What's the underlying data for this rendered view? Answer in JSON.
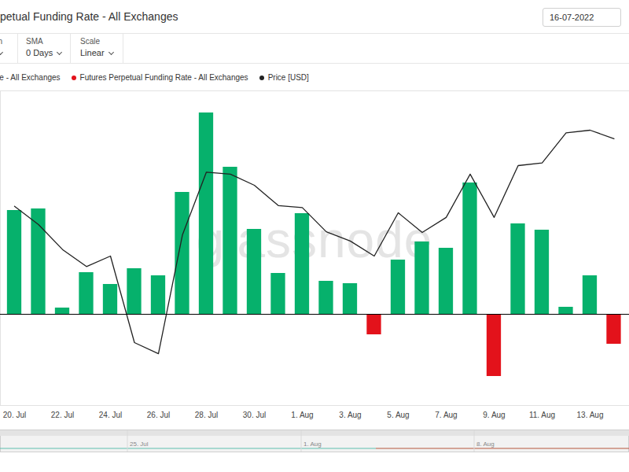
{
  "header": {
    "title": "petual Funding Rate - All Exchanges",
    "date": "16-07-2022",
    "controls": [
      {
        "label": "on"
      },
      {
        "label": "SMA",
        "value": "0 Days"
      },
      {
        "label": "Scale",
        "value": "Linear"
      }
    ]
  },
  "chart_data": {
    "type": "bar",
    "watermark": "glassnode",
    "categories": [
      "20. Jul",
      null,
      "22. Jul",
      null,
      "24. Jul",
      null,
      "26. Jul",
      null,
      "28. Jul",
      null,
      "30. Jul",
      null,
      "1. Aug",
      null,
      "3. Aug",
      null,
      "5. Aug",
      null,
      "7. Aug",
      null,
      "9. Aug",
      null,
      "11. Aug",
      null,
      "13. Aug",
      null
    ],
    "series": [
      {
        "name": "ate - All Exchanges",
        "type": "bar",
        "color": "#06b16c",
        "values": [
          0.0132,
          0.0134,
          0.0008,
          0.0053,
          0.0038,
          0.0058,
          0.0049,
          0.0155,
          0.0256,
          0.0187,
          0.0108,
          0.0052,
          0.0128,
          0.0042,
          0.0039,
          null,
          0.0069,
          0.0092,
          0.0084,
          0.0167,
          null,
          0.0115,
          0.0107,
          0.0009,
          0.0049,
          null
        ]
      },
      {
        "name": "Futures Perpetual Funding Rate - All Exchanges",
        "type": "bar",
        "color": "#e3121b",
        "values": [
          null,
          null,
          null,
          null,
          null,
          null,
          null,
          null,
          null,
          null,
          null,
          null,
          null,
          null,
          null,
          -0.0026,
          null,
          null,
          null,
          null,
          -0.0079,
          null,
          null,
          null,
          null,
          -0.0038
        ]
      },
      {
        "name": "Price [USD]",
        "type": "line",
        "axis": "y2",
        "color": "#222222",
        "values": [
          23240,
          22960,
          22580,
          22320,
          22480,
          21160,
          20990,
          22800,
          23760,
          23730,
          23560,
          23250,
          23220,
          22850,
          22710,
          22480,
          23140,
          22840,
          23070,
          23730,
          23070,
          23860,
          23900,
          24360,
          24400,
          24270
        ]
      }
    ],
    "ylim": [
      -0.0116,
      0.0284
    ],
    "yticks": [
      0
    ],
    "y2lim": [
      20200,
      25000
    ],
    "tick_labels": "x"
  },
  "navigator": {
    "labels": [
      "25. Jul",
      "1. Aug",
      "8. Aug"
    ]
  }
}
